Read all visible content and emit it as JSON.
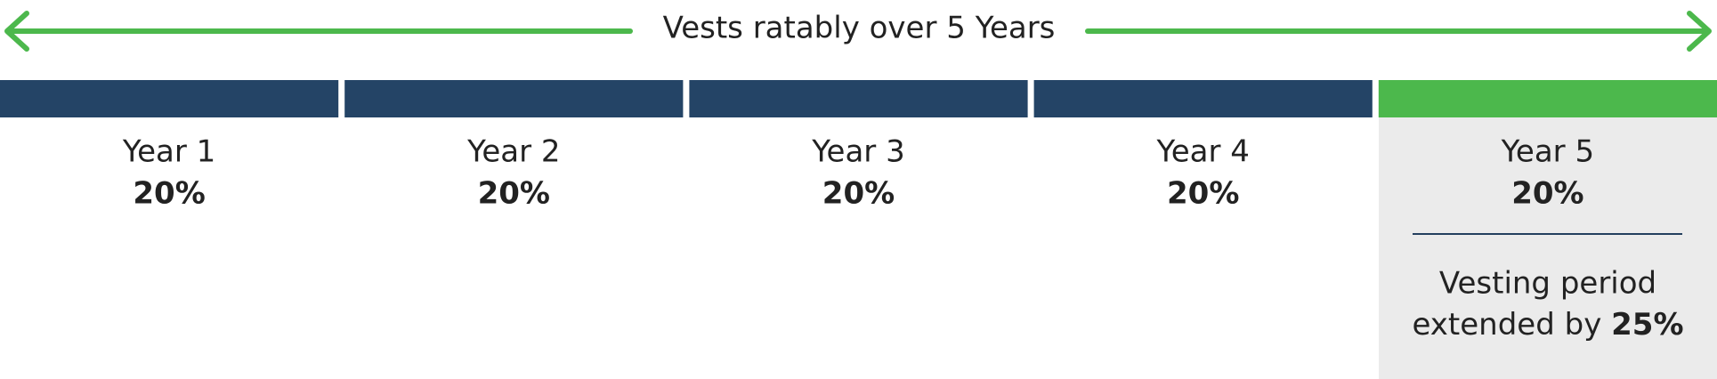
{
  "header": {
    "title": "Vests ratably over 5 Years"
  },
  "segments": [
    {
      "label": "Year 1",
      "percent": "20%"
    },
    {
      "label": "Year 2",
      "percent": "20%"
    },
    {
      "label": "Year 3",
      "percent": "20%"
    },
    {
      "label": "Year 4",
      "percent": "20%"
    },
    {
      "label": "Year 5",
      "percent": "20%"
    }
  ],
  "note": {
    "text": "Vesting period extended by",
    "emphasis": "25%"
  }
}
